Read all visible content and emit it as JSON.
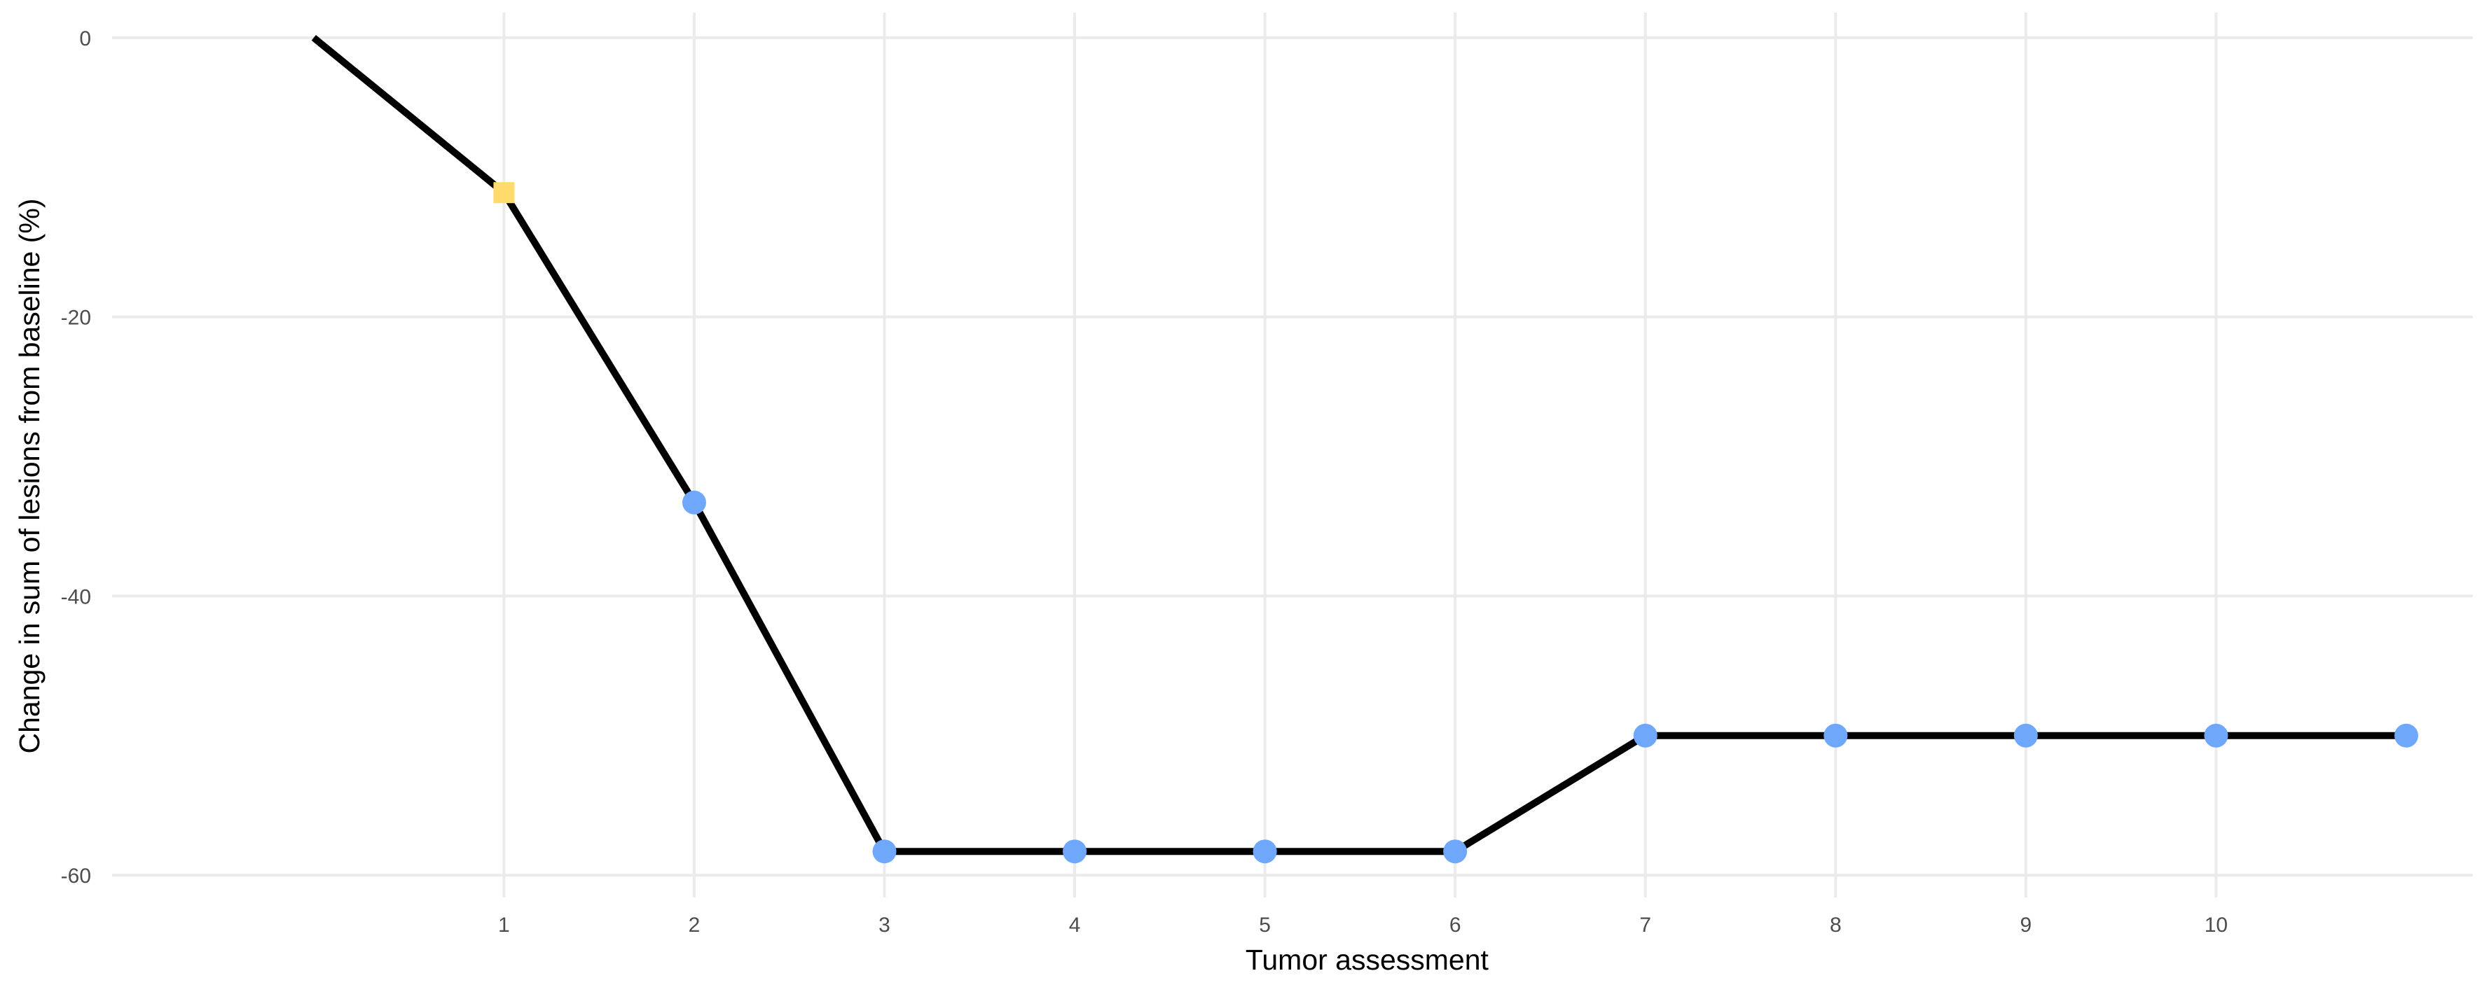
{
  "chart_data": {
    "type": "line",
    "title": "",
    "xlabel": "Tumor assessment",
    "ylabel": "Change in sum of lesions from baseline (%)",
    "x_ticks": [
      1,
      2,
      3,
      4,
      5,
      6,
      7,
      8,
      9,
      10
    ],
    "y_ticks": [
      0,
      -20,
      -40,
      -60
    ],
    "xlim": [
      -1.06,
      11.35
    ],
    "ylim": [
      -61.6,
      1.8
    ],
    "grid": true,
    "legend": "none",
    "line_color": "#000000",
    "series": [
      {
        "x": [
          0,
          1,
          2,
          3,
          4,
          5,
          6,
          7,
          8,
          9,
          10,
          11
        ],
        "y": [
          0,
          -11.1,
          -33.3,
          -58.3,
          -58.3,
          -58.3,
          -58.3,
          -50,
          -50,
          -50,
          -50,
          -50
        ]
      }
    ],
    "points": [
      {
        "x": 1,
        "y": -11.1,
        "shape": "square",
        "color": "#FFDB6D"
      },
      {
        "x": 2,
        "y": -33.3,
        "shape": "circle",
        "color": "#6FA8FA"
      },
      {
        "x": 3,
        "y": -58.3,
        "shape": "circle",
        "color": "#6FA8FA"
      },
      {
        "x": 4,
        "y": -58.3,
        "shape": "circle",
        "color": "#6FA8FA"
      },
      {
        "x": 5,
        "y": -58.3,
        "shape": "circle",
        "color": "#6FA8FA"
      },
      {
        "x": 6,
        "y": -58.3,
        "shape": "circle",
        "color": "#6FA8FA"
      },
      {
        "x": 7,
        "y": -50,
        "shape": "circle",
        "color": "#6FA8FA"
      },
      {
        "x": 8,
        "y": -50,
        "shape": "circle",
        "color": "#6FA8FA"
      },
      {
        "x": 9,
        "y": -50,
        "shape": "circle",
        "color": "#6FA8FA"
      },
      {
        "x": 10,
        "y": -50,
        "shape": "circle",
        "color": "#6FA8FA"
      },
      {
        "x": 11,
        "y": -50,
        "shape": "circle",
        "color": "#6FA8FA"
      }
    ]
  }
}
